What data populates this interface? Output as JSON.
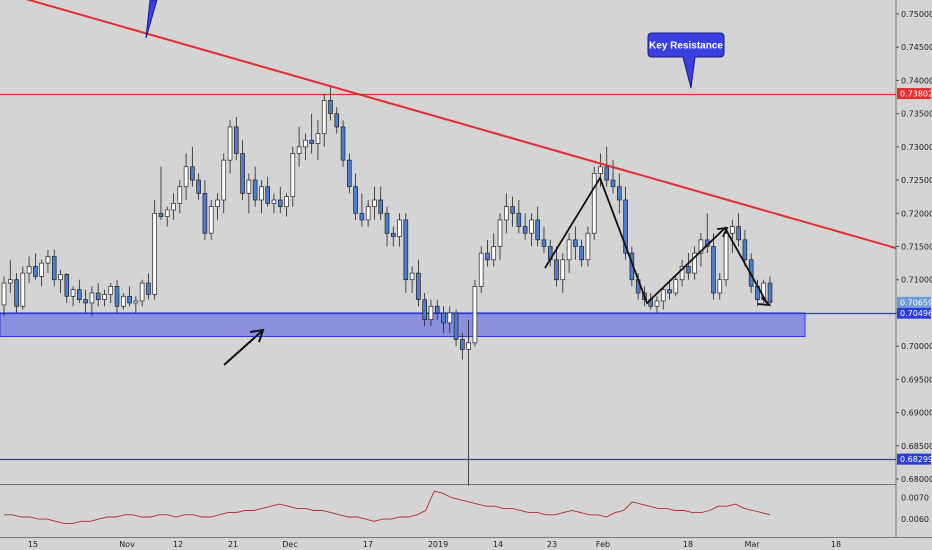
{
  "chart_data": {
    "type": "candlestick",
    "title": "",
    "xlabel": "",
    "ylabel": "",
    "ylim": [
      0.678,
      0.752
    ],
    "y_ticks": [
      "0.75000",
      "0.74500",
      "0.74000",
      "0.73500",
      "0.73000",
      "0.72500",
      "0.72000",
      "0.71500",
      "0.71000",
      "0.70500",
      "0.70000",
      "0.69500",
      "0.69000",
      "0.68500",
      "0.68000"
    ],
    "x_ticks": [
      "15",
      "Nov",
      "12",
      "21",
      "Dec",
      "17",
      "2019",
      "14",
      "23",
      "Feb",
      "18",
      "Mar",
      "18"
    ],
    "price_levels": [
      {
        "value": 0.73802,
        "label": "0.73802",
        "color": "#e52d2d"
      },
      {
        "value": 0.68299,
        "label": "0.68299",
        "color": "#2a3bd8"
      },
      {
        "value": 0.70496,
        "label": "0.70496",
        "color": "#2a3bd8"
      }
    ],
    "current_price": {
      "value": 0.70659,
      "label": "0.70659",
      "color": "#6a9ad8"
    },
    "support_zone": {
      "top": 0.705,
      "bottom": 0.7025,
      "color": "#8b8fe0"
    },
    "trendline": {
      "color": "#e52d2d",
      "points": [
        {
          "x": 0,
          "y": 0.7532
        },
        {
          "x": 153,
          "y": 0.7118
        }
      ]
    },
    "callout": {
      "text": "Key Resistance",
      "color": "#3a3fe0"
    },
    "candles": [
      [
        0.7062,
        0.7105,
        0.7045,
        0.7095
      ],
      [
        0.7095,
        0.713,
        0.708,
        0.71
      ],
      [
        0.71,
        0.711,
        0.705,
        0.706
      ],
      [
        0.706,
        0.712,
        0.7055,
        0.711
      ],
      [
        0.711,
        0.7135,
        0.7095,
        0.712
      ],
      [
        0.712,
        0.714,
        0.71,
        0.7105
      ],
      [
        0.7105,
        0.713,
        0.709,
        0.7125
      ],
      [
        0.7125,
        0.7145,
        0.711,
        0.7135
      ],
      [
        0.7135,
        0.7145,
        0.709,
        0.71
      ],
      [
        0.71,
        0.7115,
        0.708,
        0.7108
      ],
      [
        0.7108,
        0.711,
        0.7065,
        0.7075
      ],
      [
        0.7075,
        0.709,
        0.706,
        0.7085
      ],
      [
        0.7085,
        0.71,
        0.7065,
        0.707
      ],
      [
        0.707,
        0.7085,
        0.705,
        0.7065
      ],
      [
        0.7065,
        0.709,
        0.7045,
        0.708
      ],
      [
        0.708,
        0.7095,
        0.706,
        0.707
      ],
      [
        0.707,
        0.7085,
        0.706,
        0.7078
      ],
      [
        0.7078,
        0.7095,
        0.7065,
        0.709
      ],
      [
        0.709,
        0.71,
        0.705,
        0.706
      ],
      [
        0.706,
        0.708,
        0.7055,
        0.7075
      ],
      [
        0.7075,
        0.709,
        0.706,
        0.7065
      ],
      [
        0.7065,
        0.7075,
        0.705,
        0.7068
      ],
      [
        0.7068,
        0.71,
        0.706,
        0.7095
      ],
      [
        0.7095,
        0.711,
        0.707,
        0.7078
      ],
      [
        0.7078,
        0.722,
        0.707,
        0.72
      ],
      [
        0.72,
        0.727,
        0.719,
        0.7195
      ],
      [
        0.7195,
        0.721,
        0.718,
        0.7205
      ],
      [
        0.7205,
        0.723,
        0.719,
        0.7215
      ],
      [
        0.7215,
        0.725,
        0.72,
        0.724
      ],
      [
        0.724,
        0.729,
        0.722,
        0.727
      ],
      [
        0.727,
        0.73,
        0.724,
        0.725
      ],
      [
        0.725,
        0.726,
        0.722,
        0.723
      ],
      [
        0.723,
        0.725,
        0.716,
        0.717
      ],
      [
        0.717,
        0.722,
        0.716,
        0.721
      ],
      [
        0.721,
        0.723,
        0.719,
        0.722
      ],
      [
        0.722,
        0.729,
        0.72,
        0.728
      ],
      [
        0.728,
        0.734,
        0.726,
        0.733
      ],
      [
        0.733,
        0.7345,
        0.728,
        0.729
      ],
      [
        0.729,
        0.731,
        0.722,
        0.723
      ],
      [
        0.723,
        0.726,
        0.72,
        0.725
      ],
      [
        0.725,
        0.727,
        0.721,
        0.722
      ],
      [
        0.722,
        0.725,
        0.72,
        0.724
      ],
      [
        0.724,
        0.7255,
        0.721,
        0.7215
      ],
      [
        0.7215,
        0.723,
        0.72,
        0.722
      ],
      [
        0.722,
        0.724,
        0.72,
        0.721
      ],
      [
        0.721,
        0.723,
        0.7195,
        0.7225
      ],
      [
        0.7225,
        0.73,
        0.721,
        0.729
      ],
      [
        0.729,
        0.733,
        0.727,
        0.73
      ],
      [
        0.73,
        0.732,
        0.728,
        0.731
      ],
      [
        0.731,
        0.735,
        0.729,
        0.7305
      ],
      [
        0.7305,
        0.734,
        0.728,
        0.732
      ],
      [
        0.732,
        0.738,
        0.73,
        0.737
      ],
      [
        0.737,
        0.739,
        0.734,
        0.735
      ],
      [
        0.735,
        0.736,
        0.732,
        0.733
      ],
      [
        0.733,
        0.734,
        0.727,
        0.728
      ],
      [
        0.728,
        0.729,
        0.723,
        0.724
      ],
      [
        0.724,
        0.726,
        0.719,
        0.72
      ],
      [
        0.72,
        0.723,
        0.718,
        0.719
      ],
      [
        0.719,
        0.722,
        0.718,
        0.721
      ],
      [
        0.721,
        0.724,
        0.719,
        0.722
      ],
      [
        0.722,
        0.724,
        0.719,
        0.72
      ],
      [
        0.72,
        0.721,
        0.715,
        0.717
      ],
      [
        0.717,
        0.718,
        0.715,
        0.7165
      ],
      [
        0.7165,
        0.72,
        0.715,
        0.719
      ],
      [
        0.719,
        0.72,
        0.708,
        0.71
      ],
      [
        0.71,
        0.712,
        0.708,
        0.711
      ],
      [
        0.711,
        0.713,
        0.706,
        0.707
      ],
      [
        0.707,
        0.708,
        0.703,
        0.704
      ],
      [
        0.704,
        0.707,
        0.703,
        0.706
      ],
      [
        0.706,
        0.707,
        0.704,
        0.705
      ],
      [
        0.705,
        0.706,
        0.702,
        0.7035
      ],
      [
        0.7035,
        0.706,
        0.702,
        0.705
      ],
      [
        0.705,
        0.7055,
        0.7,
        0.701
      ],
      [
        0.701,
        0.702,
        0.698,
        0.6995
      ],
      [
        0.6995,
        0.704,
        0.679,
        0.7005
      ],
      [
        0.7005,
        0.71,
        0.7,
        0.709
      ],
      [
        0.709,
        0.715,
        0.708,
        0.714
      ],
      [
        0.714,
        0.716,
        0.712,
        0.713
      ],
      [
        0.713,
        0.717,
        0.712,
        0.715
      ],
      [
        0.715,
        0.72,
        0.713,
        0.719
      ],
      [
        0.719,
        0.723,
        0.717,
        0.721
      ],
      [
        0.721,
        0.7225,
        0.718,
        0.72
      ],
      [
        0.72,
        0.722,
        0.717,
        0.718
      ],
      [
        0.718,
        0.72,
        0.716,
        0.717
      ],
      [
        0.717,
        0.72,
        0.715,
        0.719
      ],
      [
        0.719,
        0.721,
        0.715,
        0.716
      ],
      [
        0.716,
        0.718,
        0.714,
        0.715
      ],
      [
        0.715,
        0.716,
        0.712,
        0.713
      ],
      [
        0.713,
        0.715,
        0.709,
        0.71
      ],
      [
        0.71,
        0.714,
        0.708,
        0.713
      ],
      [
        0.713,
        0.717,
        0.711,
        0.716
      ],
      [
        0.716,
        0.718,
        0.713,
        0.715
      ],
      [
        0.715,
        0.716,
        0.712,
        0.713
      ],
      [
        0.713,
        0.718,
        0.712,
        0.717
      ],
      [
        0.717,
        0.727,
        0.716,
        0.726
      ],
      [
        0.726,
        0.729,
        0.724,
        0.727
      ],
      [
        0.727,
        0.73,
        0.724,
        0.725
      ],
      [
        0.725,
        0.728,
        0.723,
        0.724
      ],
      [
        0.724,
        0.726,
        0.72,
        0.722
      ],
      [
        0.722,
        0.724,
        0.713,
        0.714
      ],
      [
        0.714,
        0.715,
        0.709,
        0.71
      ],
      [
        0.71,
        0.711,
        0.707,
        0.708
      ],
      [
        0.708,
        0.709,
        0.706,
        0.707
      ],
      [
        0.707,
        0.708,
        0.7055,
        0.706
      ],
      [
        0.706,
        0.7075,
        0.705,
        0.7068
      ],
      [
        0.7068,
        0.709,
        0.7055,
        0.7085
      ],
      [
        0.7085,
        0.71,
        0.707,
        0.708
      ],
      [
        0.708,
        0.7105,
        0.7075,
        0.71
      ],
      [
        0.71,
        0.713,
        0.709,
        0.712
      ],
      [
        0.712,
        0.714,
        0.71,
        0.711
      ],
      [
        0.711,
        0.715,
        0.71,
        0.714
      ],
      [
        0.714,
        0.717,
        0.712,
        0.716
      ],
      [
        0.716,
        0.72,
        0.714,
        0.715
      ],
      [
        0.715,
        0.717,
        0.707,
        0.708
      ],
      [
        0.708,
        0.711,
        0.707,
        0.71
      ],
      [
        0.71,
        0.718,
        0.709,
        0.717
      ],
      [
        0.717,
        0.719,
        0.714,
        0.718
      ],
      [
        0.718,
        0.72,
        0.715,
        0.716
      ],
      [
        0.716,
        0.7175,
        0.712,
        0.713
      ],
      [
        0.713,
        0.714,
        0.708,
        0.709
      ],
      [
        0.709,
        0.71,
        0.706,
        0.707
      ],
      [
        0.707,
        0.71,
        0.7065,
        0.7095
      ],
      [
        0.7095,
        0.7105,
        0.706,
        0.7066
      ]
    ],
    "indicator": {
      "y_ticks": [
        "0.0070",
        "0.0060"
      ],
      "ylim": [
        0.0054,
        0.0074
      ],
      "color": "#b02a2a",
      "values": [
        0.0062,
        0.0062,
        0.0061,
        0.0061,
        0.006,
        0.006,
        0.0059,
        0.0058,
        0.0058,
        0.0059,
        0.0059,
        0.006,
        0.0061,
        0.0061,
        0.0062,
        0.0062,
        0.0061,
        0.0061,
        0.0062,
        0.0062,
        0.0061,
        0.0062,
        0.0062,
        0.0061,
        0.0061,
        0.0062,
        0.0063,
        0.0063,
        0.0064,
        0.0064,
        0.0065,
        0.0066,
        0.0067,
        0.0066,
        0.0065,
        0.0065,
        0.0064,
        0.0064,
        0.0063,
        0.0062,
        0.0061,
        0.0061,
        0.006,
        0.0059,
        0.006,
        0.006,
        0.0061,
        0.0061,
        0.0062,
        0.0064,
        0.0073,
        0.0072,
        0.007,
        0.0069,
        0.0068,
        0.0067,
        0.0066,
        0.0066,
        0.0065,
        0.0065,
        0.0064,
        0.0063,
        0.0063,
        0.0062,
        0.0062,
        0.0063,
        0.0064,
        0.0063,
        0.0062,
        0.0062,
        0.0061,
        0.0063,
        0.0064,
        0.0068,
        0.0067,
        0.0066,
        0.0065,
        0.0065,
        0.0064,
        0.0064,
        0.0063,
        0.0063,
        0.0064,
        0.0066,
        0.0066,
        0.0067,
        0.0065,
        0.0064,
        0.0063,
        0.0062
      ]
    }
  }
}
